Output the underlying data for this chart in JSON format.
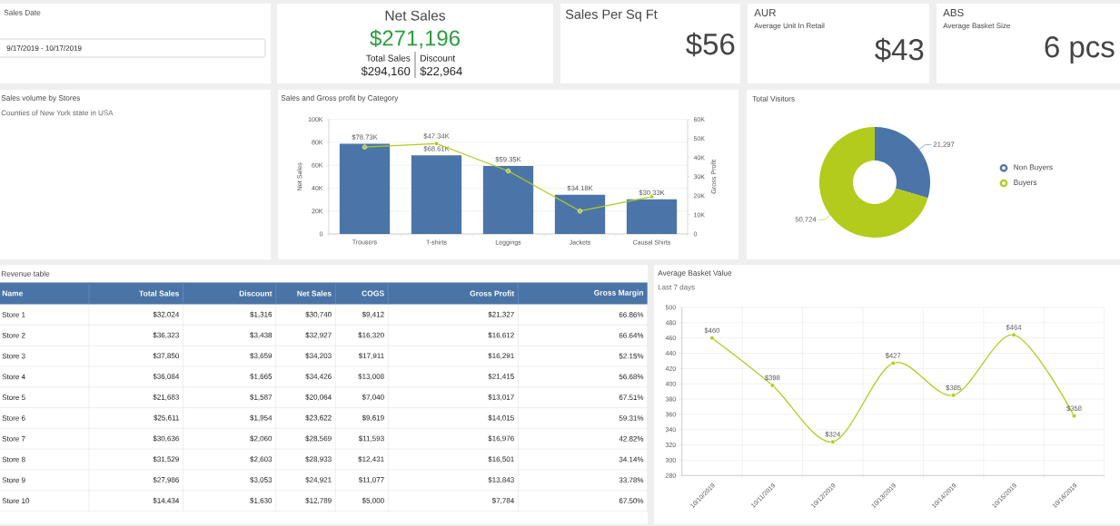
{
  "chart_data": [
    {
      "type": "other",
      "title": "Sales Date",
      "annotations": [
        "9/17/2019 - 10/17/2019"
      ]
    },
    {
      "type": "other",
      "title": "Net Sales",
      "annotations": [
        "$271,196",
        "Total Sales",
        "$294,160",
        "Discount",
        "$22,964"
      ]
    },
    {
      "type": "other",
      "title": "Sales Per Sq Ft",
      "annotations": [
        "$56"
      ]
    },
    {
      "type": "other",
      "title": "AUR",
      "subtitle": "Average Unit In Retail",
      "annotations": [
        "$43"
      ]
    },
    {
      "type": "other",
      "title": "ABS",
      "subtitle": "Average Basket Size",
      "annotations": [
        "6 pcs"
      ]
    },
    {
      "type": "other",
      "title": "Sales volume by Stores",
      "subtitle": "Counties of New York state in USA"
    },
    {
      "type": "bar",
      "title": "Sales and Gross profit by Category",
      "categories": [
        "Trousers",
        "T-shirts",
        "Leggings",
        "Jackets",
        "Causal Shirts"
      ],
      "ylabel": "Net Sales",
      "y2label": "Gross Profit",
      "ylim": [
        0,
        100000
      ],
      "yticks": [
        0,
        {
          "value": 20000,
          "label": "20K"
        },
        {
          "value": 40000,
          "label": "40K"
        },
        {
          "value": 60000,
          "label": "60K"
        },
        {
          "value": 80000,
          "label": "80K"
        },
        {
          "value": 100000,
          "label": "100K"
        }
      ],
      "y2lim": [
        0,
        60000
      ],
      "y2ticks": [
        0,
        {
          "value": 10000,
          "label": "10K"
        },
        {
          "value": 20000,
          "label": "20K"
        },
        {
          "value": 30000,
          "label": "30K"
        },
        {
          "value": 40000,
          "label": "40K"
        },
        {
          "value": 50000,
          "label": "50K"
        },
        {
          "value": 60000,
          "label": "60K"
        }
      ],
      "grid": "y",
      "series": [
        {
          "type": "bar",
          "color": "#4b75a8",
          "values": [
            78730,
            68610,
            59350,
            34180,
            30330
          ],
          "value_labels": [
            "$78.73K",
            "$68.61K",
            "$59.35K",
            "$34.18K",
            "$30.33K"
          ]
        },
        {
          "type": "line",
          "axis": "y2",
          "color": "#b3cb1c",
          "marker": "circle",
          "values": [
            45500,
            47340,
            33000,
            12000,
            19500
          ],
          "value_labels": [
            null,
            "$47.34K",
            null,
            null,
            null
          ]
        }
      ]
    },
    {
      "type": "donut",
      "title": "Total Visitors",
      "categories": [
        "Non Buyers",
        "Buyers"
      ],
      "values": [
        21297,
        50724
      ],
      "colors": [
        "#4b75a8",
        "#b3cb1c"
      ],
      "value_labels": [
        "21,297",
        "50,724"
      ],
      "legend": "right"
    },
    {
      "type": "other",
      "title": "Revenue table",
      "categories": [
        "Name",
        "Total Sales",
        "Discount",
        "Net Sales",
        "COGS",
        "Gross Profit",
        "Gross Margin"
      ],
      "annotations": [
        "Store 1",
        "$32,024",
        "$1,316",
        "$30,740",
        "$9,412",
        "$21,327",
        "66.86%",
        "Store 2",
        "$36,323",
        "$3,438",
        "$32,927",
        "$16,320",
        "$16,612",
        "66.64%",
        "Store 3",
        "$37,850",
        "$3,659",
        "$34,203",
        "$17,911",
        "$16,291",
        "52.15%",
        "Store 4",
        "$36,084",
        "$1,665",
        "$34,426",
        "$13,008",
        "$21,415",
        "56.68%",
        "Store 5",
        "$21,683",
        "$1,587",
        "$20,064",
        "$7,040",
        "$13,017",
        "67.51%",
        "Store 6",
        "$25,611",
        "$1,954",
        "$23,622",
        "$9,619",
        "$14,015",
        "59.31%",
        "Store 7",
        "$30,636",
        "$2,060",
        "$28,569",
        "$11,593",
        "$16,976",
        "42.82%",
        "Store 8",
        "$31,529",
        "$2,603",
        "$28,933",
        "$12,431",
        "$16,501",
        "34.14%",
        "Store 9",
        "$27,986",
        "$3,053",
        "$24,921",
        "$11,077",
        "$13,843",
        "33.78%",
        "Store 10",
        "$14,434",
        "$1,630",
        "$12,789",
        "$5,000",
        "$7,784",
        "67.50%"
      ]
    },
    {
      "type": "line",
      "title": "Average Basket Value",
      "subtitle": "Last 7 days",
      "categories": [
        "10/10/2019",
        "10/11/2019",
        "10/12/2019",
        "10/13/2019",
        "10/14/2019",
        "10/15/2019",
        "10/16/2019"
      ],
      "ylim": [
        280,
        500
      ],
      "yticks": [
        280,
        300,
        320,
        340,
        360,
        380,
        400,
        420,
        440,
        460,
        480,
        500
      ],
      "grid": true,
      "marker": "circle",
      "series": [
        {
          "color": "#b3cb1c",
          "values": [
            460,
            398,
            324,
            427,
            385,
            464,
            358
          ],
          "value_labels": [
            "$460",
            "$398",
            "$324",
            "$427",
            "$385",
            "$464",
            "$358"
          ]
        }
      ]
    }
  ]
}
